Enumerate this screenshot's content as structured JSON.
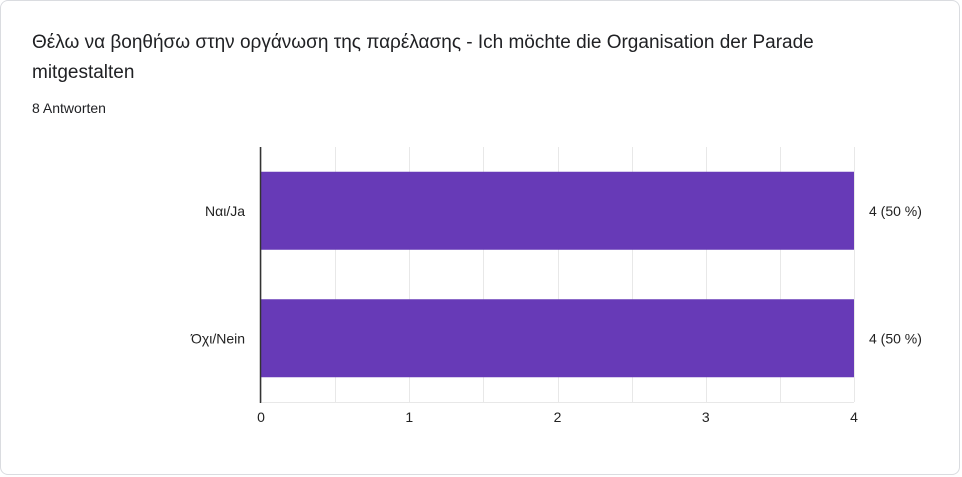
{
  "question": {
    "title": "Θέλω να βοηθήσω στην οργάνωση της παρέλασης - Ich möchte die Organisation der Parade mitgestalten",
    "responses": "8 Antworten"
  },
  "colors": {
    "bar": "#673ab7",
    "axis": "#333333",
    "grid": "#e8e8e8"
  },
  "chart_data": {
    "type": "bar",
    "orientation": "horizontal",
    "categories": [
      "Ναι/Ja",
      "Όχι/Nein"
    ],
    "values": [
      4,
      4
    ],
    "data_labels": [
      "4 (50 %)",
      "4 (50 %)"
    ],
    "xlim": [
      0,
      4
    ],
    "xticks": [
      "0",
      "1",
      "2",
      "3",
      "4"
    ],
    "grid": true,
    "legend": "none"
  }
}
